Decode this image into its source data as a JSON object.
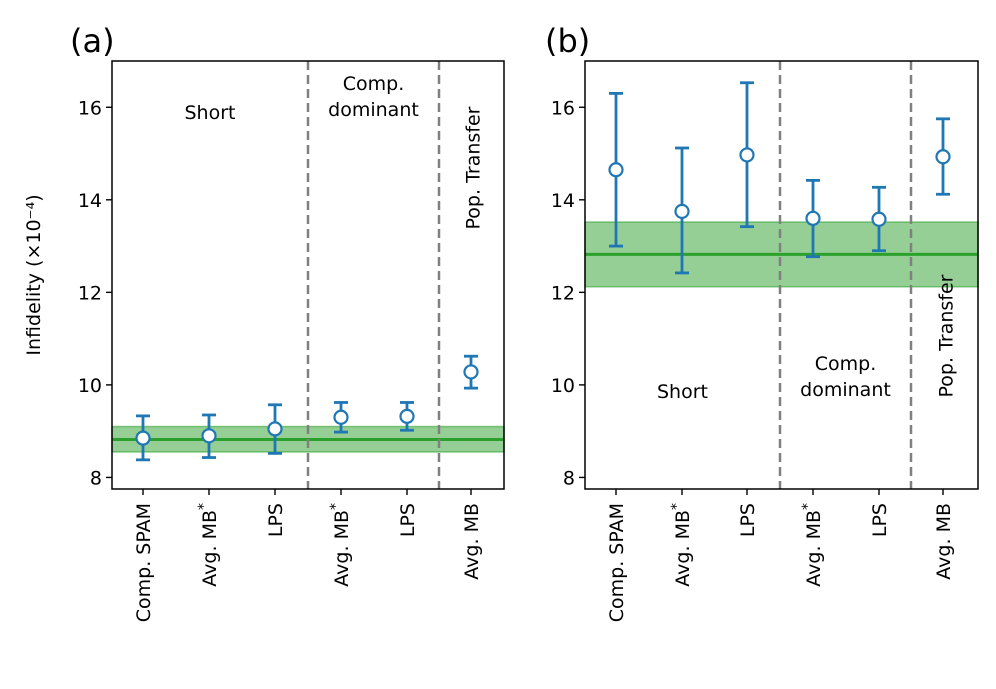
{
  "chart_data": [
    {
      "type": "errorbar",
      "panel_label": "(a)",
      "ylabel": "Infidelity (×10⁻⁴)",
      "ylim": [
        7.75,
        17.0
      ],
      "y_ticks": [
        8,
        10,
        12,
        14,
        16
      ],
      "y_tick_labels": [
        "8",
        "10",
        "12",
        "14",
        "16"
      ],
      "categories": [
        "Comp. SPAM",
        "Avg. MB*",
        "LPS",
        "Avg. MB*",
        "LPS",
        "Avg. MB"
      ],
      "values": [
        8.85,
        8.9,
        9.05,
        9.3,
        9.32,
        10.28
      ],
      "err_low": [
        8.38,
        8.43,
        8.52,
        8.98,
        9.02,
        9.93
      ],
      "err_high": [
        9.33,
        9.35,
        9.57,
        9.62,
        9.62,
        10.62
      ],
      "reference": {
        "value": 8.82,
        "band": [
          8.55,
          9.1
        ]
      },
      "separators_after_index": [
        2,
        4
      ],
      "groups": [
        {
          "label_lines": [
            "Short"
          ],
          "rotated": false
        },
        {
          "label_lines": [
            "Comp.",
            "dominant"
          ],
          "rotated": false
        },
        {
          "label_lines": [
            "Pop. Transfer"
          ],
          "rotated": true
        }
      ]
    },
    {
      "type": "errorbar",
      "panel_label": "(b)",
      "ylabel": "",
      "ylim": [
        7.75,
        17.0
      ],
      "y_ticks": [
        8,
        10,
        12,
        14,
        16
      ],
      "y_tick_labels": [
        "8",
        "10",
        "12",
        "14",
        "16"
      ],
      "categories": [
        "Comp. SPAM",
        "Avg. MB*",
        "LPS",
        "Avg. MB*",
        "LPS",
        "Avg. MB"
      ],
      "values": [
        14.65,
        13.75,
        14.97,
        13.6,
        13.58,
        14.93
      ],
      "err_low": [
        13.0,
        12.42,
        13.42,
        12.77,
        12.9,
        14.12
      ],
      "err_high": [
        16.3,
        15.12,
        16.53,
        14.42,
        14.27,
        15.75
      ],
      "reference": {
        "value": 12.82,
        "band": [
          12.12,
          13.52
        ]
      },
      "separators_after_index": [
        2,
        4
      ],
      "groups": [
        {
          "label_lines": [
            "Short"
          ],
          "rotated": false
        },
        {
          "label_lines": [
            "Comp.",
            "dominant"
          ],
          "rotated": false
        },
        {
          "label_lines": [
            "Pop. Transfer"
          ],
          "rotated": true
        }
      ]
    }
  ],
  "colors": {
    "series": "#1f77b4",
    "reference_line": "#2ca02c",
    "reference_band": "#2ca02c",
    "separator": "#808080"
  }
}
